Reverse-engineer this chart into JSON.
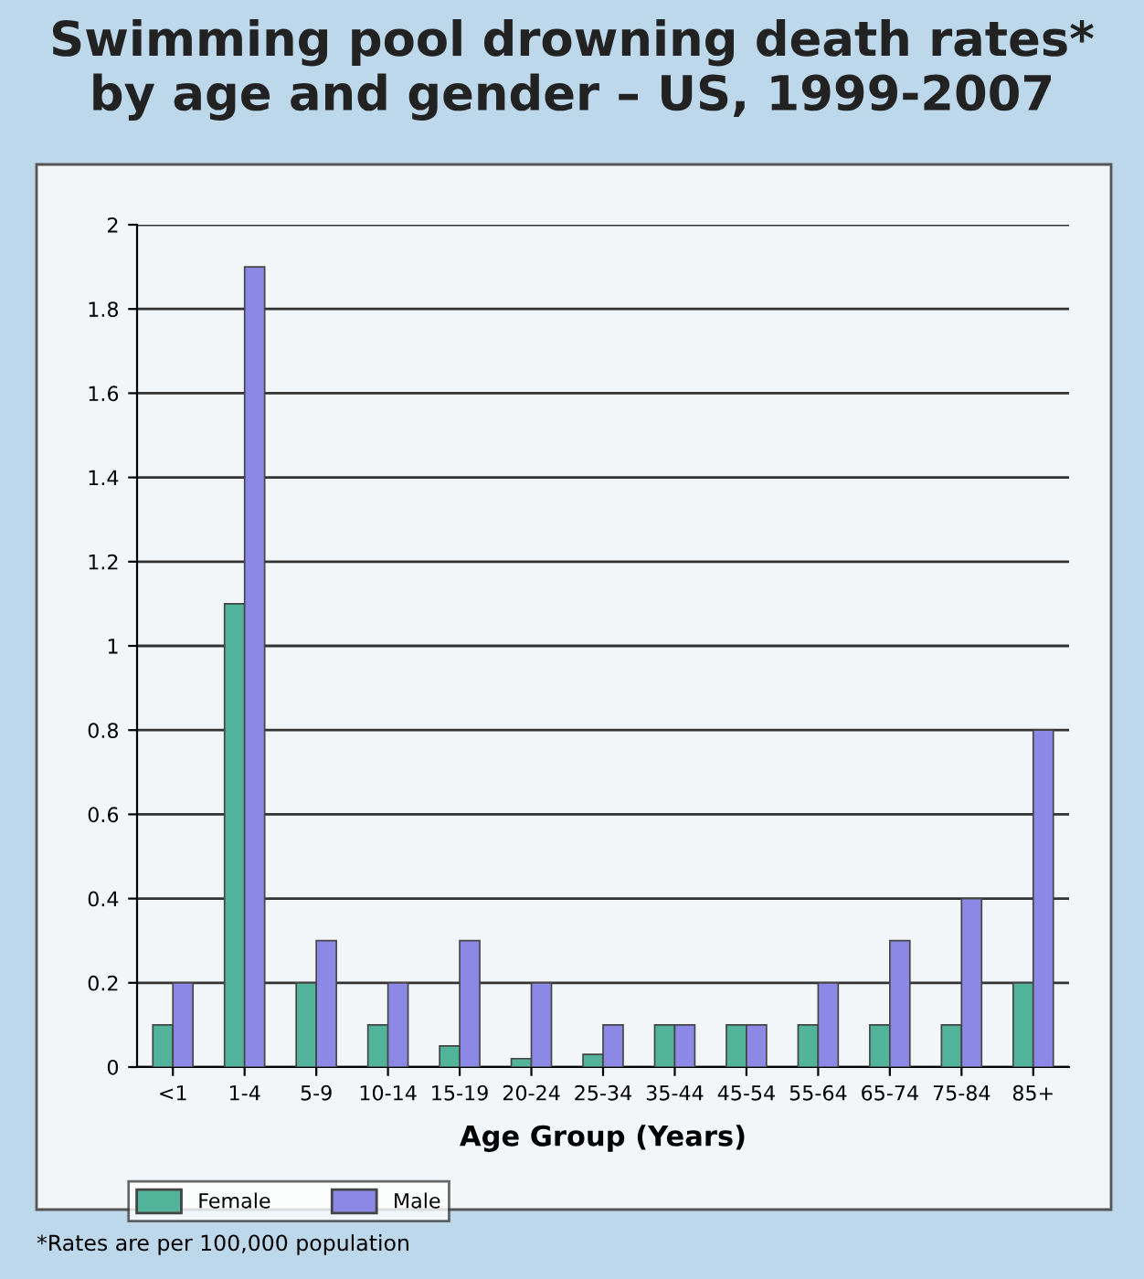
{
  "chart_data": {
    "type": "bar",
    "title": "Swimming pool drowning death rates*\nby age and gender – US, 1999-2007",
    "xlabel": "Age Group (Years)",
    "categories": [
      "<1",
      "1-4",
      "5-9",
      "10-14",
      "15-19",
      "20-24",
      "25-34",
      "35-44",
      "45-54",
      "55-64",
      "65-74",
      "75-84",
      "85+"
    ],
    "series": [
      {
        "name": "Female",
        "color": "#52b39b",
        "values": [
          0.1,
          1.1,
          0.2,
          0.1,
          0.05,
          0.02,
          0.03,
          0.1,
          0.1,
          0.1,
          0.1,
          0.1,
          0.2
        ]
      },
      {
        "name": "Male",
        "color": "#8b88e6",
        "values": [
          0.2,
          1.9,
          0.3,
          0.2,
          0.3,
          0.2,
          0.1,
          0.1,
          0.1,
          0.2,
          0.3,
          0.4,
          0.8
        ]
      }
    ],
    "ylim": [
      0,
      2
    ],
    "yticks": [
      0,
      0.2,
      0.4,
      0.6,
      0.8,
      1,
      1.2,
      1.4,
      1.6,
      1.8,
      2
    ],
    "grid": "y",
    "legend": "bottom left",
    "annotations": [
      "*Rates are per 100,000 population"
    ]
  }
}
